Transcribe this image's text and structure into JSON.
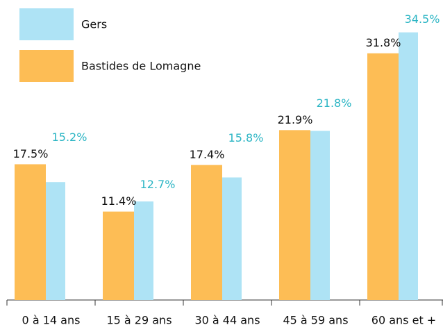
{
  "chart_data": {
    "type": "bar",
    "categories": [
      "0 à 14 ans",
      "15 à 29 ans",
      "30 à 44 ans",
      "45 à 59 ans",
      "60 ans et +"
    ],
    "series": [
      {
        "name": "Gers",
        "color": "#aee3f5",
        "label_color": "#2bb5c4",
        "values": [
          15.2,
          12.7,
          15.8,
          21.8,
          34.5
        ],
        "value_labels": [
          "15.2%",
          "12.7%",
          "15.8%",
          "21.8%",
          "34.5%"
        ]
      },
      {
        "name": "Bastides de Lomagne",
        "color": "#fdbd55",
        "label_color": "#111111",
        "values": [
          17.5,
          11.4,
          17.4,
          21.9,
          31.8
        ],
        "value_labels": [
          "17.5%",
          "11.4%",
          "17.4%",
          "21.9%",
          "31.8%"
        ]
      }
    ],
    "ylim": [
      0,
      35
    ]
  }
}
